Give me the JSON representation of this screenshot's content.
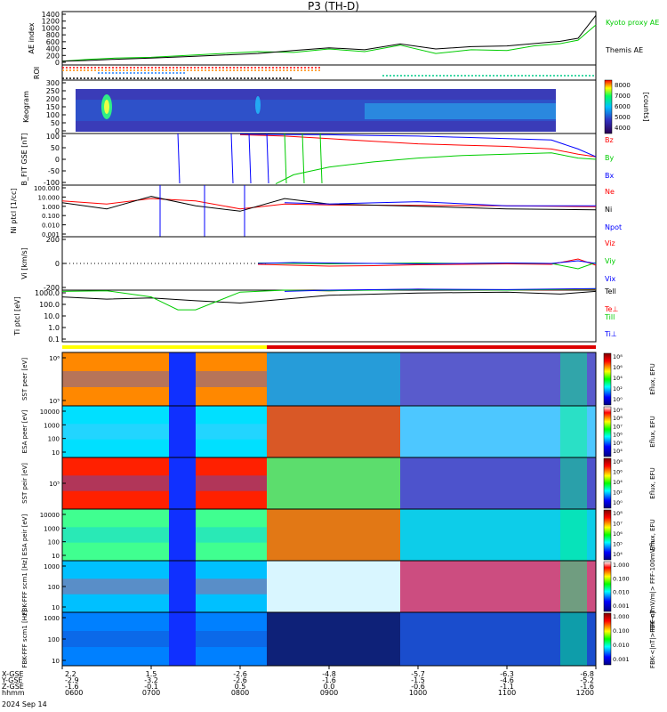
{
  "title": "P3 (TH-D)",
  "time_range": [
    "0600",
    "1200"
  ],
  "date_label": "2024 Sep 14",
  "ephemeris": {
    "row_labels": [
      "X-GSE",
      "Y-GSE",
      "Z-GSE",
      "hhmm"
    ],
    "columns": [
      {
        "x": "2.2",
        "y": "-2.9",
        "z": "-1.6",
        "hhmm": "0600"
      },
      {
        "x": "1.5",
        "y": "-3.2",
        "z": "-0.1",
        "hhmm": "0700"
      },
      {
        "x": "-2.6",
        "y": "-2.6",
        "z": "0.5",
        "hhmm": "0800"
      },
      {
        "x": "-4.8",
        "y": "-1.6",
        "z": "0.0",
        "hhmm": "0900"
      },
      {
        "x": "-5.7",
        "y": "-1.5",
        "z": "-0.6",
        "hhmm": "1000"
      },
      {
        "x": "-6.3",
        "y": "-4.6",
        "z": "-1.1",
        "hhmm": "1100"
      },
      {
        "x": "-6.8",
        "y": "-5.2",
        "z": "-1.6",
        "hhmm": "1200"
      }
    ]
  },
  "chart_data": [
    {
      "type": "line",
      "panel": "ae",
      "ylabel": "AE index",
      "ylim": [
        0,
        1400
      ],
      "ytick_labels": [
        "1400",
        "1200",
        "1000",
        "800",
        "600",
        "400",
        "200",
        "0"
      ],
      "series": [
        {
          "name": "Kyoto proxy AE",
          "color": "#00cc00",
          "x": [
            6.0,
            6.3,
            6.6,
            7.0,
            7.4,
            7.8,
            8.2,
            8.6,
            9.0,
            9.4,
            9.8,
            10.2,
            10.6,
            11.0,
            11.3,
            11.6,
            11.8,
            12.0
          ],
          "values": [
            100,
            150,
            180,
            200,
            250,
            300,
            350,
            330,
            420,
            350,
            520,
            300,
            400,
            380,
            500,
            560,
            650,
            1050
          ]
        },
        {
          "name": "Themis AE",
          "color": "#000000",
          "x": [
            6.0,
            6.3,
            6.6,
            7.0,
            7.4,
            7.8,
            8.2,
            8.6,
            9.0,
            9.4,
            9.8,
            10.2,
            10.6,
            11.0,
            11.3,
            11.6,
            11.8,
            12.0
          ],
          "values": [
            100,
            120,
            150,
            180,
            220,
            260,
            300,
            380,
            450,
            400,
            550,
            420,
            480,
            500,
            560,
            620,
            700,
            1300
          ]
        }
      ]
    },
    {
      "type": "line",
      "panel": "roi",
      "ylabel": "ROI",
      "series": [
        {
          "name": "roi-red",
          "color": "#ff0000",
          "x": [
            6.0,
            8.9
          ]
        },
        {
          "name": "roi-orange",
          "color": "#ff8800",
          "x": [
            6.0,
            8.9
          ]
        },
        {
          "name": "roi-blue",
          "color": "#2080ff",
          "x": [
            6.4,
            7.4
          ]
        },
        {
          "name": "roi-green",
          "color": "#00cc88",
          "x": [
            9.6,
            12.0
          ]
        },
        {
          "name": "roi-black",
          "color": "#000000",
          "x": [
            6.0,
            8.6
          ]
        }
      ]
    },
    {
      "type": "heatmap",
      "panel": "keogram",
      "ylabel": "Keogram",
      "ylim": [
        0,
        300
      ],
      "ytick_labels": [
        "300",
        "250",
        "200",
        "150",
        "100",
        "50",
        "0"
      ],
      "data_extent_x": [
        6.15,
        11.55
      ],
      "colorbar": {
        "label": "[counts]",
        "tick_labels": [
          "8000",
          "7000",
          "6000",
          "5000",
          "4000"
        ]
      }
    },
    {
      "type": "line",
      "panel": "bfit",
      "ylabel": "B_FIT GSE [nT]",
      "ylim": [
        -100,
        100
      ],
      "ytick_labels": [
        "100",
        "50",
        "0",
        "-50",
        "-100"
      ],
      "series": [
        {
          "name": "Bz",
          "color": "#ff0000",
          "x": [
            8.0,
            8.5,
            9.0,
            9.5,
            10.0,
            10.5,
            11.0,
            11.5,
            11.8,
            12.0
          ],
          "values": [
            95,
            90,
            80,
            70,
            60,
            55,
            50,
            40,
            20,
            10
          ]
        },
        {
          "name": "By",
          "color": "#00cc00",
          "x": [
            8.4,
            8.6,
            9.0,
            9.5,
            10.0,
            10.5,
            11.0,
            11.5,
            11.8,
            12.0
          ],
          "values": [
            -95,
            -60,
            -30,
            -10,
            5,
            15,
            20,
            25,
            5,
            0
          ]
        },
        {
          "name": "Bx",
          "color": "#0000ff",
          "x": [
            8.0,
            8.5,
            9.0,
            9.5,
            10.0,
            10.5,
            11.0,
            11.5,
            11.8,
            12.0
          ],
          "values": [
            98,
            96,
            95,
            92,
            90,
            85,
            80,
            75,
            40,
            10
          ]
        }
      ]
    },
    {
      "type": "line",
      "panel": "density",
      "log_y": true,
      "ylabel": "Ni ptcl [1/cc]",
      "ylim": [
        0.001,
        100
      ],
      "ytick_labels": [
        "100.000",
        "10.000",
        "1.000",
        "0.100",
        "0.010",
        "0.001"
      ],
      "series": [
        {
          "name": "Ne",
          "color": "#ff0000",
          "x": [
            6.0,
            6.5,
            7.0,
            7.5,
            8.0,
            8.5,
            9.0,
            10.0,
            11.0,
            12.0
          ],
          "values": [
            3,
            1.5,
            5,
            3,
            0.5,
            1.5,
            1.2,
            1.1,
            1.0,
            0.8
          ]
        },
        {
          "name": "Ni",
          "color": "#000000",
          "x": [
            6.0,
            6.5,
            7.0,
            7.5,
            8.0,
            8.5,
            9.0,
            10.0,
            11.0,
            12.0
          ],
          "values": [
            2,
            0.5,
            8,
            1,
            0.3,
            5,
            1.5,
            0.9,
            0.5,
            0.4
          ]
        },
        {
          "name": "Npot",
          "color": "#0000ff",
          "x": [
            8.5,
            9.0,
            10.0,
            11.0,
            12.0
          ],
          "values": [
            2,
            1.5,
            2.5,
            1.0,
            1.0
          ]
        }
      ]
    },
    {
      "type": "line",
      "panel": "velocity",
      "ylabel": "Vi [km/s]",
      "ylim": [
        -300,
        300
      ],
      "ytick_labels": [
        "200",
        "0",
        "-200"
      ],
      "series": [
        {
          "name": "Viz",
          "color": "#ff0000",
          "x": [
            8.2,
            8.6,
            9.0,
            9.5,
            10.0,
            10.5,
            11.0,
            11.5,
            11.8,
            12.0
          ],
          "values": [
            -10,
            -20,
            -30,
            -25,
            -15,
            -10,
            -5,
            -10,
            50,
            -20
          ]
        },
        {
          "name": "Viy",
          "color": "#00cc00",
          "x": [
            8.2,
            8.6,
            9.0,
            9.5,
            10.0,
            10.5,
            11.0,
            11.5,
            11.8,
            12.0
          ],
          "values": [
            5,
            0,
            -5,
            0,
            5,
            0,
            5,
            0,
            -60,
            10
          ]
        },
        {
          "name": "Vix",
          "color": "#0000ff",
          "x": [
            8.2,
            8.6,
            9.0,
            9.5,
            10.0,
            10.5,
            11.0,
            11.5,
            11.8,
            12.0
          ],
          "values": [
            0,
            10,
            5,
            0,
            -5,
            0,
            5,
            0,
            30,
            0
          ]
        }
      ]
    },
    {
      "type": "line",
      "panel": "temperature",
      "log_y": true,
      "ylabel": "Ti ptcl [eV]",
      "ylim": [
        0.1,
        1000
      ],
      "ytick_labels": [
        "1000.0",
        "100.0",
        "10.0",
        "1.0",
        "0.1"
      ],
      "series": [
        {
          "name": "Tell",
          "color": "#000000",
          "x": [
            6.0,
            6.5,
            7.0,
            7.5,
            8.0,
            8.5,
            9.0,
            10.0,
            11.0,
            11.6,
            12.0
          ],
          "values": [
            300,
            200,
            250,
            150,
            100,
            200,
            400,
            600,
            700,
            500,
            800
          ]
        },
        {
          "name": "Te⊥",
          "color": "#ff0000",
          "x": [
            8.5,
            9.0,
            10.0,
            11.0,
            12.0
          ],
          "values": [
            1000,
            900,
            1200,
            1000,
            1100
          ]
        },
        {
          "name": "Till",
          "color": "#00cc00",
          "x": [
            6.0,
            6.5,
            7.0,
            7.3,
            7.5,
            8.0,
            8.5,
            9.0,
            10.0,
            11.0,
            12.0
          ],
          "values": [
            800,
            900,
            300,
            30,
            30,
            700,
            1000,
            900,
            1100,
            1000,
            1200
          ]
        },
        {
          "name": "Ti⊥",
          "color": "#0000ff",
          "x": [
            8.5,
            9.0,
            10.0,
            11.0,
            12.0
          ],
          "values": [
            800,
            1000,
            1200,
            1100,
            1300
          ]
        }
      ]
    },
    {
      "type": "line",
      "panel": "mode-bar",
      "series": [
        {
          "name": "slow-survey",
          "color": "#ffff00",
          "x": [
            6.0,
            8.3
          ]
        },
        {
          "name": "fast-survey",
          "color": "#dd0000",
          "x": [
            8.3,
            12.0
          ]
        }
      ]
    },
    {
      "type": "heatmap",
      "panel": "sst-e",
      "log_y": true,
      "ylabel": "SST peer [eV]",
      "ytick_labels": [
        "10⁶",
        "10⁵"
      ],
      "colorbar": {
        "label": "Eflux, EFU",
        "tick_labels": [
          "10⁸",
          "10⁶",
          "10⁴",
          "10²",
          "10⁰"
        ]
      }
    },
    {
      "type": "heatmap",
      "panel": "esa-e",
      "log_y": true,
      "ylabel": "ESA peer [eV]",
      "ytick_labels": [
        "10000",
        "1000",
        "100",
        "10"
      ],
      "colorbar": {
        "label": "Eflux, EFU",
        "tick_labels": [
          "10⁹",
          "10⁸",
          "10⁷",
          "10⁶",
          "10⁵",
          "10⁴"
        ]
      }
    },
    {
      "type": "heatmap",
      "panel": "sst-i",
      "log_y": true,
      "ylabel": "SST peir [eV]",
      "ytick_labels": [
        "10⁵"
      ],
      "colorbar": {
        "label": "Eflux, EFU",
        "tick_labels": [
          "10⁸",
          "10⁶",
          "10⁴",
          "10²",
          "10⁰"
        ]
      }
    },
    {
      "type": "heatmap",
      "panel": "esa-i",
      "log_y": true,
      "ylabel": "ESA peir [eV]",
      "ytick_labels": [
        "10000",
        "1000",
        "100",
        "10"
      ],
      "colorbar": {
        "label": "Eflux, EFU",
        "tick_labels": [
          "10⁸",
          "10⁷",
          "10⁶",
          "10⁵",
          "10⁴"
        ]
      }
    },
    {
      "type": "heatmap",
      "panel": "fbk-e",
      "log_y": true,
      "ylabel": "FBK-FFF scm1 [Hz]",
      "ytick_labels": [
        "1000",
        "100",
        "10"
      ],
      "colorbar": {
        "label": "FBK-<|mV/m|> FFF-100mV/m",
        "tick_labels": [
          "1.000",
          "0.100",
          "0.010",
          "0.001"
        ]
      }
    },
    {
      "type": "heatmap",
      "panel": "fbk-b",
      "log_y": true,
      "ylabel": "FBK-FFF scm1 [Hz]",
      "ytick_labels": [
        "1000",
        "100",
        "10"
      ],
      "colorbar": {
        "label": "FBK-<|nT|> FFF-nT",
        "tick_labels": [
          "1.000",
          "0.100",
          "0.010",
          "0.001"
        ]
      }
    }
  ]
}
